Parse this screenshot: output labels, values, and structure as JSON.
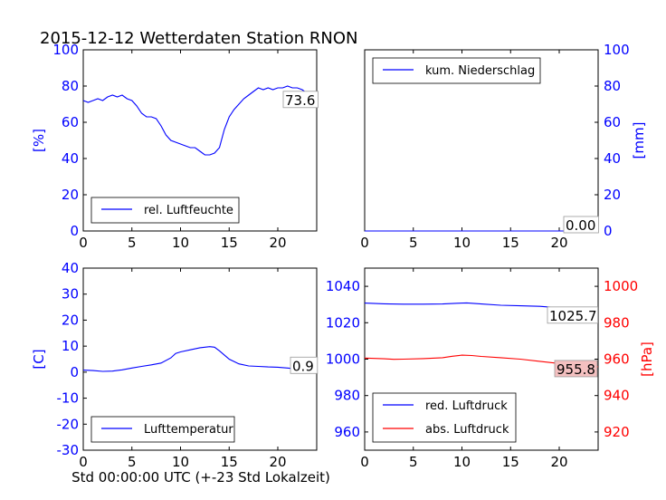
{
  "page": {
    "title": "2015-12-12 Wetterdaten Station RNON",
    "xlabel": "Std 00:00:00 UTC (+-23 Std Lokalzeit)"
  },
  "colors": {
    "blue": "#0000ff",
    "red": "#ff0000",
    "black": "#000000"
  },
  "chart_data": [
    {
      "id": "humidity",
      "type": "line",
      "xlim": [
        0,
        24
      ],
      "ylim": [
        0,
        100
      ],
      "xticks": [
        0,
        5,
        10,
        15,
        20
      ],
      "yticks": [
        0,
        20,
        40,
        60,
        80,
        100
      ],
      "ylabel": "[%]",
      "legend": "bottom-left",
      "current_label": "73.6",
      "series": [
        {
          "name": "rel. Luftfeuchte",
          "color": "#0000ff",
          "points": [
            [
              0,
              72
            ],
            [
              0.5,
              71
            ],
            [
              1,
              72
            ],
            [
              1.5,
              73
            ],
            [
              2,
              72
            ],
            [
              2.5,
              74
            ],
            [
              3,
              75
            ],
            [
              3.5,
              74
            ],
            [
              4,
              75
            ],
            [
              4.5,
              73
            ],
            [
              5,
              72
            ],
            [
              5.5,
              69
            ],
            [
              6,
              65
            ],
            [
              6.5,
              63
            ],
            [
              7,
              63
            ],
            [
              7.5,
              62
            ],
            [
              8,
              58
            ],
            [
              8.5,
              53
            ],
            [
              9,
              50
            ],
            [
              9.5,
              49
            ],
            [
              10,
              48
            ],
            [
              10.5,
              47
            ],
            [
              11,
              46
            ],
            [
              11.5,
              46
            ],
            [
              12,
              44
            ],
            [
              12.5,
              42
            ],
            [
              13,
              42
            ],
            [
              13.5,
              43
            ],
            [
              14,
              46
            ],
            [
              14.5,
              56
            ],
            [
              15,
              63
            ],
            [
              15.5,
              67
            ],
            [
              16,
              70
            ],
            [
              16.5,
              73
            ],
            [
              17,
              75
            ],
            [
              17.5,
              77
            ],
            [
              18,
              79
            ],
            [
              18.5,
              78
            ],
            [
              19,
              79
            ],
            [
              19.5,
              78
            ],
            [
              20,
              79
            ],
            [
              20.5,
              79
            ],
            [
              21,
              80
            ],
            [
              21.5,
              79
            ],
            [
              22,
              79
            ],
            [
              22.5,
              78
            ],
            [
              23,
              76
            ],
            [
              23.5,
              74
            ],
            [
              24,
              73.6
            ]
          ]
        }
      ]
    },
    {
      "id": "precipitation",
      "type": "line",
      "xlim": [
        0,
        24
      ],
      "ylim": [
        0,
        100
      ],
      "xticks": [
        0,
        5,
        10,
        15,
        20
      ],
      "yticks": [
        0,
        20,
        40,
        60,
        80,
        100
      ],
      "ylabel": "[mm]",
      "legend": "top-left",
      "current_label": "0.00",
      "series": [
        {
          "name": "kum. Niederschlag",
          "color": "#0000ff",
          "points": [
            [
              0,
              0
            ],
            [
              24,
              0
            ]
          ]
        }
      ]
    },
    {
      "id": "temperature",
      "type": "line",
      "xlim": [
        0,
        24
      ],
      "ylim": [
        -30,
        40
      ],
      "xticks": [
        0,
        5,
        10,
        15,
        20
      ],
      "yticks": [
        -30,
        -20,
        -10,
        0,
        10,
        20,
        30,
        40
      ],
      "ylabel": "[C]",
      "legend": "bottom-left",
      "current_label": "0.9",
      "series": [
        {
          "name": "Lufttemperatur",
          "color": "#0000ff",
          "points": [
            [
              0,
              0.8
            ],
            [
              1,
              0.6
            ],
            [
              2,
              0.3
            ],
            [
              3,
              0.4
            ],
            [
              4,
              0.9
            ],
            [
              5,
              1.6
            ],
            [
              6,
              2.2
            ],
            [
              7,
              2.8
            ],
            [
              8,
              3.5
            ],
            [
              9,
              5.5
            ],
            [
              9.5,
              7.2
            ],
            [
              10,
              7.8
            ],
            [
              11,
              8.6
            ],
            [
              12,
              9.4
            ],
            [
              13,
              9.8
            ],
            [
              13.5,
              9.6
            ],
            [
              14,
              8.2
            ],
            [
              14.5,
              6.6
            ],
            [
              15,
              5
            ],
            [
              16,
              3.2
            ],
            [
              17,
              2.4
            ],
            [
              18,
              2.2
            ],
            [
              19,
              2
            ],
            [
              20,
              1.9
            ],
            [
              21,
              1.6
            ],
            [
              22,
              1.2
            ],
            [
              23,
              1
            ],
            [
              24,
              0.9
            ]
          ]
        }
      ]
    },
    {
      "id": "pressure",
      "type": "line",
      "xlim": [
        0,
        24
      ],
      "ylim": [
        950,
        1050
      ],
      "ylim_right": [
        910,
        1010
      ],
      "xticks": [
        0,
        5,
        10,
        15,
        20
      ],
      "yticks": [
        960,
        980,
        1000,
        1020,
        1040
      ],
      "yticks_right": [
        920,
        940,
        960,
        980,
        1000
      ],
      "ylabel_right": "[hPa]",
      "legend": "bottom-left",
      "series": [
        {
          "name": "red. Luftdruck",
          "color": "#0000ff",
          "axis": "left",
          "current_label": "1025.7",
          "points": [
            [
              0,
              1030.8
            ],
            [
              2,
              1030.4
            ],
            [
              4,
              1030.2
            ],
            [
              6,
              1030.2
            ],
            [
              8,
              1030.3
            ],
            [
              9.5,
              1030.7
            ],
            [
              10.5,
              1030.9
            ],
            [
              12,
              1030.3
            ],
            [
              14,
              1029.6
            ],
            [
              16,
              1029.3
            ],
            [
              18,
              1029
            ],
            [
              20,
              1028.2
            ],
            [
              22,
              1027
            ],
            [
              24,
              1025.7
            ]
          ]
        },
        {
          "name": "abs. Luftdruck",
          "color": "#ff0000",
          "axis": "right",
          "current_label": "955.8",
          "points": [
            [
              0,
              960.6
            ],
            [
              2,
              960.2
            ],
            [
              3,
              959.9
            ],
            [
              4,
              960
            ],
            [
              6,
              960.3
            ],
            [
              8,
              960.8
            ],
            [
              9,
              961.6
            ],
            [
              10,
              962.2
            ],
            [
              11,
              962
            ],
            [
              12,
              961.5
            ],
            [
              14,
              960.8
            ],
            [
              16,
              960
            ],
            [
              18,
              958.8
            ],
            [
              20,
              957.6
            ],
            [
              22,
              956.6
            ],
            [
              24,
              955.8
            ]
          ]
        }
      ]
    }
  ]
}
